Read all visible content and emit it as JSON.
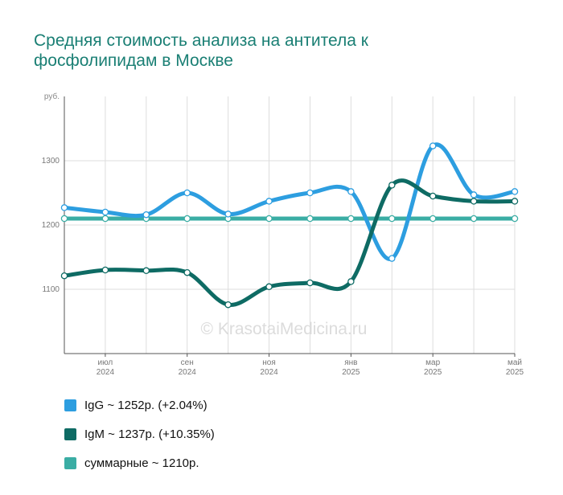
{
  "chart_data": {
    "type": "line",
    "title": "Средняя стоимость анализа на антитела к фосфолипидам в Москве",
    "unit_label": "руб.",
    "watermark": "© KrasotaiMedicina.ru",
    "ylim": [
      1000,
      1400
    ],
    "yticks": [
      {
        "value": 1100,
        "label": "1100"
      },
      {
        "value": 1200,
        "label": "1200"
      },
      {
        "value": 1300,
        "label": "1300"
      }
    ],
    "xticks": [
      {
        "index": 1,
        "month": "июл",
        "year": "2024"
      },
      {
        "index": 3,
        "month": "сен",
        "year": "2024"
      },
      {
        "index": 5,
        "month": "ноя",
        "year": "2024"
      },
      {
        "index": 7,
        "month": "янв",
        "year": "2025"
      },
      {
        "index": 9,
        "month": "мар",
        "year": "2025"
      },
      {
        "index": 11,
        "month": "май",
        "year": "2025"
      }
    ],
    "x_count": 12,
    "grid": true,
    "legend_position": "bottom",
    "series": [
      {
        "name": "IgG",
        "color": "#2d9ee0",
        "values": [
          1227,
          1220,
          1216,
          1250,
          1217,
          1237,
          1250,
          1252,
          1148,
          1323,
          1247,
          1252
        ]
      },
      {
        "name": "IgM",
        "color": "#0e6b64",
        "values": [
          1121,
          1130,
          1129,
          1126,
          1076,
          1104,
          1110,
          1112,
          1262,
          1245,
          1237,
          1237
        ]
      },
      {
        "name": "суммарные",
        "color": "#3aada4",
        "values": [
          1210,
          1210,
          1210,
          1210,
          1210,
          1210,
          1210,
          1210,
          1210,
          1210,
          1210,
          1210
        ]
      }
    ]
  },
  "legend": [
    {
      "label": "IgG ~ 1252р. (+2.04%)",
      "color": "#2d9ee0"
    },
    {
      "label": "IgM ~ 1237р. (+10.35%)",
      "color": "#0e6b64"
    },
    {
      "label": "суммарные ~ 1210р.",
      "color": "#3aada4"
    }
  ]
}
